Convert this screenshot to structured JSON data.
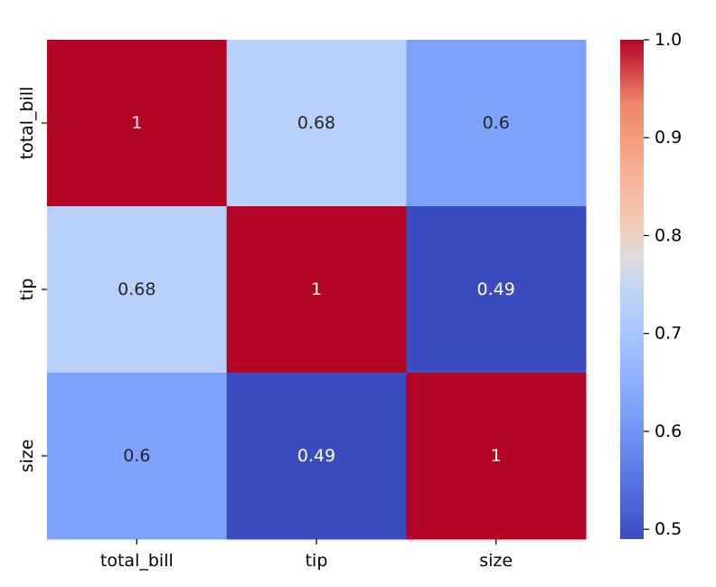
{
  "chart_data": {
    "type": "heatmap",
    "title": "",
    "xlabel": "",
    "ylabel": "",
    "x_categories": [
      "total_bill",
      "tip",
      "size"
    ],
    "y_categories": [
      "total_bill",
      "tip",
      "size"
    ],
    "matrix": [
      [
        1.0,
        0.68,
        0.6
      ],
      [
        0.68,
        1.0,
        0.49
      ],
      [
        0.6,
        0.49,
        1.0
      ]
    ],
    "cell_labels": [
      [
        "1",
        "0.68",
        "0.6"
      ],
      [
        "0.68",
        "1",
        "0.49"
      ],
      [
        "0.6",
        "0.49",
        "1"
      ]
    ],
    "colormap": "coolwarm",
    "colorbar": {
      "range": [
        0.49,
        1.0
      ],
      "ticks": [
        0.5,
        0.6,
        0.7,
        0.8,
        0.9,
        1.0
      ],
      "tick_labels": [
        "0.5",
        "0.6",
        "0.7",
        "0.8",
        "0.9",
        "1.0"
      ]
    },
    "cell_colors": {
      "1": "#b40426",
      "0.68": "#b8d0f9",
      "0.6": "#7ea1fa",
      "0.49": "#3b4cc0"
    }
  }
}
